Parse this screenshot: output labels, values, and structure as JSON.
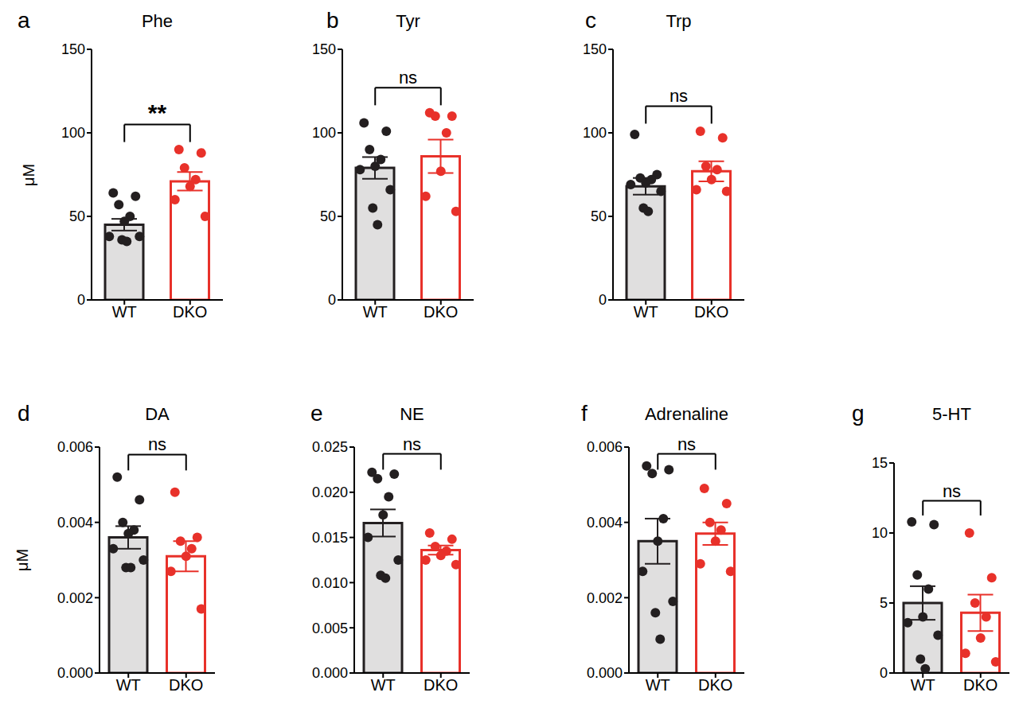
{
  "chart_data": [
    {
      "type": "bar",
      "panel": "a",
      "title": "Phe",
      "y_label": "μM",
      "categories": [
        "WT",
        "DKO"
      ],
      "values": [
        45,
        71
      ],
      "errors": [
        3.5,
        5.5
      ],
      "points": [
        [
          64,
          62,
          57,
          50,
          47,
          38,
          38,
          36,
          35
        ],
        [
          90,
          88,
          79,
          72,
          68,
          60,
          50
        ]
      ],
      "colors": [
        "#231f20",
        "#e8312a"
      ],
      "ylim": [
        0,
        150
      ],
      "yticks": [
        0,
        50,
        100,
        150
      ],
      "significance": "**"
    },
    {
      "type": "bar",
      "panel": "b",
      "title": "Tyr",
      "categories": [
        "WT",
        "DKO"
      ],
      "values": [
        79,
        86
      ],
      "errors": [
        6.5,
        10
      ],
      "points": [
        [
          106,
          101,
          90,
          84,
          80,
          78,
          66,
          55,
          45
        ],
        [
          112,
          110,
          110,
          100,
          77,
          62,
          53
        ]
      ],
      "colors": [
        "#231f20",
        "#e8312a"
      ],
      "ylim": [
        0,
        150
      ],
      "yticks": [
        0,
        50,
        100,
        150
      ],
      "significance": "ns"
    },
    {
      "type": "bar",
      "panel": "c",
      "title": "Trp",
      "categories": [
        "WT",
        "DKO"
      ],
      "values": [
        68,
        77
      ],
      "errors": [
        5,
        6
      ],
      "points": [
        [
          99,
          75,
          73,
          72,
          70,
          69,
          65,
          55,
          53
        ],
        [
          101,
          97,
          80,
          78,
          72,
          66,
          65
        ]
      ],
      "colors": [
        "#231f20",
        "#e8312a"
      ],
      "ylim": [
        0,
        150
      ],
      "yticks": [
        0,
        50,
        100,
        150
      ],
      "significance": "ns"
    },
    {
      "type": "bar",
      "panel": "d",
      "title": "DA",
      "y_label": "μM",
      "categories": [
        "WT",
        "DKO"
      ],
      "values": [
        0.0036,
        0.0031
      ],
      "errors": [
        0.0003,
        0.0004
      ],
      "points": [
        [
          0.0052,
          0.0046,
          0.004,
          0.0038,
          0.0037,
          0.0033,
          0.003,
          0.0028,
          0.0028
        ],
        [
          0.0048,
          0.0036,
          0.0035,
          0.0033,
          0.0031,
          0.0027,
          0.0017
        ]
      ],
      "colors": [
        "#231f20",
        "#e8312a"
      ],
      "ylim": [
        0,
        0.006
      ],
      "yticks": [
        {
          "value": 0,
          "label": "0.000"
        },
        {
          "value": 0.002,
          "label": "0.002"
        },
        {
          "value": 0.004,
          "label": "0.004"
        },
        {
          "value": 0.006,
          "label": "0.006"
        }
      ],
      "significance": "ns"
    },
    {
      "type": "bar",
      "panel": "e",
      "title": "NE",
      "categories": [
        "WT",
        "DKO"
      ],
      "values": [
        0.0166,
        0.0136
      ],
      "errors": [
        0.0015,
        0.0005
      ],
      "points": [
        [
          0.0222,
          0.022,
          0.0215,
          0.0195,
          0.0175,
          0.015,
          0.0125,
          0.0108,
          0.0105
        ],
        [
          0.0155,
          0.0148,
          0.014,
          0.0135,
          0.013,
          0.0125,
          0.012
        ]
      ],
      "colors": [
        "#231f20",
        "#e8312a"
      ],
      "ylim": [
        0,
        0.025
      ],
      "yticks": [
        {
          "value": 0,
          "label": "0.000"
        },
        {
          "value": 0.005,
          "label": "0.005"
        },
        {
          "value": 0.01,
          "label": "0.010"
        },
        {
          "value": 0.015,
          "label": "0.015"
        },
        {
          "value": 0.02,
          "label": "0.020"
        },
        {
          "value": 0.025,
          "label": "0.025"
        }
      ],
      "significance": "ns"
    },
    {
      "type": "bar",
      "panel": "f",
      "title": "Adrenaline",
      "categories": [
        "WT",
        "DKO"
      ],
      "values": [
        0.0035,
        0.0037
      ],
      "errors": [
        0.0006,
        0.0003
      ],
      "points": [
        [
          0.0055,
          0.0054,
          0.0053,
          0.0041,
          0.0035,
          0.0027,
          0.0019,
          0.0016,
          0.0009
        ],
        [
          0.0049,
          0.0045,
          0.004,
          0.0038,
          0.0035,
          0.0029,
          0.0027
        ]
      ],
      "colors": [
        "#231f20",
        "#e8312a"
      ],
      "ylim": [
        0,
        0.006
      ],
      "yticks": [
        {
          "value": 0,
          "label": "0.000"
        },
        {
          "value": 0.002,
          "label": "0.002"
        },
        {
          "value": 0.004,
          "label": "0.004"
        },
        {
          "value": 0.006,
          "label": "0.006"
        }
      ],
      "significance": "ns"
    },
    {
      "type": "bar",
      "panel": "g",
      "title": "5-HT",
      "categories": [
        "WT",
        "DKO"
      ],
      "values": [
        5.0,
        4.3
      ],
      "errors": [
        1.2,
        1.3
      ],
      "points": [
        [
          10.8,
          10.6,
          7.0,
          6.0,
          4.0,
          3.6,
          2.7,
          1.0,
          0.3
        ],
        [
          10.0,
          6.8,
          5.0,
          4.0,
          2.5,
          1.4,
          0.8
        ]
      ],
      "colors": [
        "#231f20",
        "#e8312a"
      ],
      "ylim": [
        0,
        15
      ],
      "yticks": [
        0,
        5,
        10,
        15
      ],
      "significance": "ns"
    }
  ]
}
